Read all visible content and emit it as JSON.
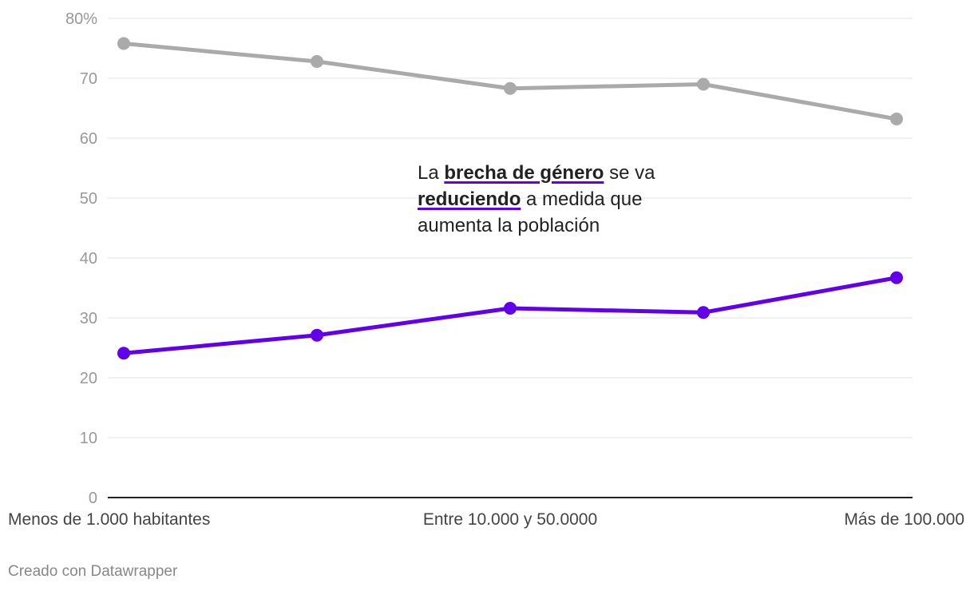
{
  "chart_data": {
    "type": "line",
    "categories": [
      "Menos de 1.000 habitantes",
      "",
      "Entre 10.000 y 50.0000",
      "",
      "Más de 100.000"
    ],
    "series": [
      {
        "values": [
          75.8,
          72.8,
          68.3,
          69.0,
          63.2
        ],
        "color": "#aaaaaa"
      },
      {
        "values": [
          24.1,
          27.1,
          31.6,
          30.9,
          36.7
        ],
        "color": "#6200ea"
      }
    ],
    "ylim": [
      0,
      80
    ],
    "yticks": [
      "0",
      "10",
      "20",
      "30",
      "40",
      "50",
      "60",
      "70",
      "80%"
    ],
    "grid": true
  },
  "annotation": {
    "part1": "La ",
    "bold1": "brecha de género",
    "part2": " se va ",
    "bold2": "reduciendo",
    "part3": " a medida que aumenta la población",
    "underline_color": "#6200ea"
  },
  "credit": "Creado con Datawrapper"
}
